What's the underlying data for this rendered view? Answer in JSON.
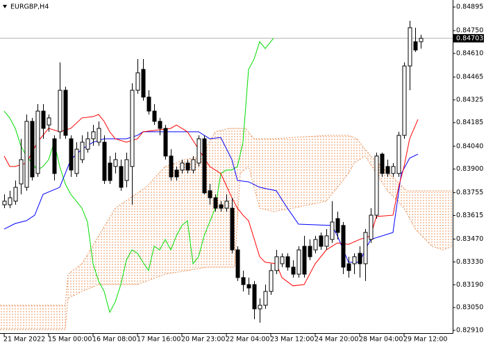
{
  "chart_data": {
    "type": "candlestick",
    "title": "EURGBP,H4",
    "xlim": [
      -0.75,
      80.75
    ],
    "ylim": [
      0.82893,
      0.84938
    ],
    "xticks": [
      {
        "value": 0,
        "label": "21 Mar 2022"
      },
      {
        "value": 8,
        "label": "15 Mar 00:00"
      },
      {
        "value": 16,
        "label": "16 Mar 08:00"
      },
      {
        "value": 24,
        "label": "17 Mar 16:00"
      },
      {
        "value": 32,
        "label": "20 Mar 23:00"
      },
      {
        "value": 40,
        "label": "22 Mar 04:00"
      },
      {
        "value": 48,
        "label": "23 Mar 12:00"
      },
      {
        "value": 56,
        "label": "24 Mar 20:00"
      },
      {
        "value": 64,
        "label": "28 Mar 04:00"
      },
      {
        "value": 72,
        "label": "29 Mar 12:00"
      }
    ],
    "yticks": [
      0.84895,
      {
        "value": 0.8475,
        "label": "0.84750"
      },
      {
        "value": 0.8461,
        "label": "0.84610"
      },
      0.84465,
      0.84325,
      0.84185,
      {
        "value": 0.8404,
        "label": "0.84040"
      },
      {
        "value": 0.839,
        "label": "0.83900"
      },
      0.83755,
      0.83615,
      {
        "value": 0.8347,
        "label": "0.83470"
      },
      {
        "value": 0.8333,
        "label": "0.83330"
      },
      {
        "value": 0.8319,
        "label": "0.83190"
      },
      {
        "value": 0.8305,
        "label": "0.83050"
      },
      {
        "value": 0.8291,
        "label": "0.82910"
      }
    ],
    "current_price": 0.84703,
    "up_color": "#ffffff",
    "down_color": "#000000",
    "x": [
      0,
      1,
      2,
      3,
      4,
      5,
      6,
      7,
      8,
      9,
      10,
      11,
      12,
      13,
      14,
      15,
      16,
      17,
      18,
      19,
      20,
      21,
      22,
      23,
      24,
      25,
      26,
      27,
      28,
      29,
      30,
      31,
      32,
      33,
      34,
      35,
      36,
      37,
      38,
      39,
      40,
      41,
      42,
      43,
      44,
      45,
      46,
      47,
      48,
      49,
      50,
      51,
      52,
      53,
      54,
      55,
      56,
      57,
      58,
      59,
      60,
      61,
      62,
      63,
      64,
      65,
      66,
      67,
      68,
      69,
      70,
      71,
      72,
      73,
      74,
      75
    ],
    "open": [
      0.83681,
      0.83681,
      0.83703,
      0.83809,
      0.83788,
      0.84193,
      0.83873,
      0.84256,
      0.84171,
      0.84086,
      0.84129,
      0.84384,
      0.84086,
      0.83873,
      0.83958,
      0.84022,
      0.84086,
      0.84065,
      0.84065,
      0.83937,
      0.83916,
      0.83916,
      0.8383,
      0.83916,
      0.84384,
      0.84512,
      0.84342,
      0.84256,
      0.84193,
      0.8415,
      0.8398,
      0.83894,
      0.83894,
      0.83937,
      0.83894,
      0.83937,
      0.84086,
      0.83767,
      0.83724,
      0.83681,
      0.8366,
      0.8366,
      0.83404,
      0.83234,
      0.83191,
      0.83191,
      0.83042,
      0.83064,
      0.83149,
      0.83277,
      0.83319,
      0.83362,
      0.83298,
      0.83255,
      0.83426,
      0.83426,
      0.83404,
      0.8349,
      0.83426,
      0.83468,
      0.83596,
      0.83554,
      0.83319,
      0.83319,
      0.83383,
      0.83319,
      0.83468,
      0.83617,
      0.83992,
      0.83916,
      0.83873,
      0.83873,
      0.84107,
      0.84533,
      0.84682,
      0.84682
    ],
    "high": [
      0.83745,
      0.83767,
      0.8383,
      0.84086,
      0.84235,
      0.84214,
      0.84299,
      0.84299,
      0.84235,
      0.84107,
      0.84555,
      0.84406,
      0.84107,
      0.84065,
      0.84107,
      0.84129,
      0.84171,
      0.84193,
      0.84107,
      0.8398,
      0.84001,
      0.83958,
      0.84001,
      0.84427,
      0.84576,
      0.84576,
      0.84384,
      0.84299,
      0.84214,
      0.84171,
      0.84022,
      0.83916,
      0.83958,
      0.83958,
      0.8398,
      0.84107,
      0.84107,
      0.83809,
      0.83745,
      0.83703,
      0.83745,
      0.83724,
      0.83426,
      0.83277,
      0.83234,
      0.83213,
      0.83106,
      0.83191,
      0.83319,
      0.83404,
      0.83383,
      0.83383,
      0.83341,
      0.83426,
      0.8349,
      0.83468,
      0.8349,
      0.83511,
      0.83532,
      0.83703,
      0.83639,
      0.83575,
      0.83362,
      0.83383,
      0.83426,
      0.83532,
      0.8366,
      0.84001,
      0.84001,
      0.83958,
      0.83937,
      0.84129,
      0.84555,
      0.8481,
      0.84768,
      0.84725
    ],
    "low": [
      0.8366,
      0.8366,
      0.83681,
      0.83745,
      0.83767,
      0.8383,
      0.83852,
      0.84086,
      0.84129,
      0.8383,
      0.84086,
      0.84086,
      0.83852,
      0.83852,
      0.83937,
      0.84001,
      0.84043,
      0.84043,
      0.83809,
      0.83809,
      0.83873,
      0.83767,
      0.83788,
      0.83681,
      0.84363,
      0.8432,
      0.84235,
      0.84171,
      0.84107,
      0.83958,
      0.8383,
      0.8383,
      0.83873,
      0.83873,
      0.83873,
      0.83916,
      0.83745,
      0.83681,
      0.83639,
      0.83639,
      0.83639,
      0.83383,
      0.83213,
      0.83149,
      0.83128,
      0.82978,
      0.82957,
      0.83042,
      0.83128,
      0.83255,
      0.83298,
      0.83277,
      0.83234,
      0.83234,
      0.83234,
      0.83341,
      0.83383,
      0.83404,
      0.83404,
      0.83447,
      0.83468,
      0.83255,
      0.83234,
      0.83255,
      0.83234,
      0.83213,
      0.83447,
      0.83596,
      0.83852,
      0.83852,
      0.83852,
      0.83852,
      0.84086,
      0.84384,
      0.84619,
      0.8464
    ],
    "close": [
      0.83703,
      0.83724,
      0.83788,
      0.83958,
      0.84193,
      0.83852,
      0.84256,
      0.8415,
      0.84214,
      0.83873,
      0.84384,
      0.84107,
      0.83894,
      0.84022,
      0.84065,
      0.84086,
      0.84129,
      0.8415,
      0.8383,
      0.8383,
      0.83958,
      0.83788,
      0.83958,
      0.84384,
      0.84491,
      0.84342,
      0.84256,
      0.84193,
      0.8415,
      0.8398,
      0.83852,
      0.83852,
      0.83937,
      0.83894,
      0.83958,
      0.84086,
      0.83754,
      0.83724,
      0.8366,
      0.8366,
      0.83703,
      0.83404,
      0.83234,
      0.83191,
      0.8317,
      0.83042,
      0.83064,
      0.83149,
      0.83277,
      0.83362,
      0.83362,
      0.83298,
      0.83255,
      0.83404,
      0.83255,
      0.83362,
      0.83468,
      0.83426,
      0.8349,
      0.83575,
      0.83511,
      0.83298,
      0.83277,
      0.83362,
      0.83319,
      0.83511,
      0.83617,
      0.8398,
      0.83873,
      0.83873,
      0.83916,
      0.84107,
      0.84533,
      0.84768,
      0.84631,
      0.84703
    ],
    "kijun": {
      "color": "#0000ff",
      "x": [
        0,
        2,
        4,
        5.5,
        7,
        10,
        12,
        14,
        16,
        18,
        22,
        24,
        25,
        35,
        37,
        39,
        41,
        42,
        44,
        46,
        49,
        51,
        53,
        59,
        60,
        62,
        64,
        65,
        66,
        70,
        71.5,
        73,
        74.5
      ],
      "values": [
        0.83532,
        0.83566,
        0.83583,
        0.83617,
        0.83745,
        0.83788,
        0.83958,
        0.84022,
        0.84065,
        0.84086,
        0.84086,
        0.84107,
        0.84129,
        0.84129,
        0.84086,
        0.84094,
        0.83958,
        0.8383,
        0.83822,
        0.83788,
        0.83767,
        0.8366,
        0.83562,
        0.83554,
        0.8349,
        0.83328,
        0.83328,
        0.83404,
        0.83468,
        0.83511,
        0.83873,
        0.83967,
        0.83992
      ]
    },
    "tenkan": {
      "color": "#ff0000",
      "x": [
        0,
        1,
        2,
        4,
        6,
        8,
        10,
        12,
        14,
        16,
        17,
        18,
        19,
        20,
        22,
        24,
        25,
        27,
        30,
        31,
        33,
        35,
        37,
        39,
        41,
        42,
        43,
        44,
        46,
        47,
        49,
        50,
        52,
        54,
        56,
        58,
        60,
        62,
        64,
        66,
        67,
        70,
        71,
        72,
        73,
        74.5
      ],
      "values": [
        0.8398,
        0.83916,
        0.83916,
        0.83937,
        0.84065,
        0.8415,
        0.84129,
        0.8415,
        0.84214,
        0.84222,
        0.84235,
        0.84193,
        0.84129,
        0.84086,
        0.84065,
        0.84086,
        0.84129,
        0.84137,
        0.8415,
        0.84171,
        0.84129,
        0.84022,
        0.83916,
        0.83873,
        0.83724,
        0.8366,
        0.83617,
        0.83583,
        0.83362,
        0.83328,
        0.83319,
        0.83234,
        0.83183,
        0.83191,
        0.83319,
        0.83404,
        0.83447,
        0.83438,
        0.83468,
        0.8349,
        0.83609,
        0.83617,
        0.83788,
        0.83916,
        0.84086,
        0.84205
      ]
    },
    "chikou": {
      "color": "#00dd00",
      "x": [
        0,
        1,
        2,
        3,
        4,
        6,
        7,
        8,
        9,
        10,
        11,
        12,
        13,
        14,
        15,
        16,
        17,
        18,
        19,
        20,
        21,
        22,
        23,
        24,
        25,
        26,
        27,
        28,
        29,
        30,
        31,
        32,
        33,
        34,
        35,
        36,
        37,
        38,
        39,
        40,
        41,
        42,
        43,
        44,
        45,
        46,
        47,
        48,
        48.5
      ],
      "values": [
        0.84256,
        0.84214,
        0.8415,
        0.84043,
        0.8398,
        0.83894,
        0.83916,
        0.83958,
        0.84065,
        0.83916,
        0.83809,
        0.83745,
        0.83703,
        0.8366,
        0.83575,
        0.83319,
        0.83213,
        0.83149,
        0.83021,
        0.83085,
        0.83191,
        0.83341,
        0.83404,
        0.83383,
        0.83328,
        0.83277,
        0.83426,
        0.83404,
        0.83468,
        0.83404,
        0.8349,
        0.83554,
        0.83583,
        0.83319,
        0.83362,
        0.8349,
        0.83575,
        0.8366,
        0.83873,
        0.83894,
        0.83894,
        0.83916,
        0.84065,
        0.84512,
        0.84576,
        0.84682,
        0.8464,
        0.84682,
        0.84704
      ]
    },
    "cloud_color": "#e8925a",
    "senkou_a": {
      "x": [
        -0.75,
        11,
        11.5,
        14,
        17,
        20,
        25.5,
        29,
        32.5,
        35.5,
        38,
        40.5,
        43.5,
        45,
        48.5,
        58,
        62,
        63.5,
        65,
        66,
        72.5,
        80.75
      ],
      "values": [
        0.83064,
        0.83064,
        0.83255,
        0.83319,
        0.8349,
        0.8366,
        0.83788,
        0.83916,
        0.83958,
        0.8398,
        0.84129,
        0.8415,
        0.8415,
        0.84086,
        0.84086,
        0.84107,
        0.84107,
        0.84086,
        0.84022,
        0.8398,
        0.83767,
        0.83767
      ]
    },
    "senkou_b": {
      "x": [
        -0.75,
        11,
        11.5,
        14,
        17,
        24,
        29,
        33,
        36.5,
        41.5,
        42.5,
        44,
        46,
        48.5,
        52,
        58,
        62,
        63,
        65,
        69,
        72,
        74,
        77,
        79,
        80.75
      ],
      "values": [
        0.82915,
        0.82915,
        0.83106,
        0.83149,
        0.83191,
        0.83191,
        0.83255,
        0.83277,
        0.83298,
        0.83298,
        0.83873,
        0.83916,
        0.8366,
        0.83639,
        0.8366,
        0.83703,
        0.83873,
        0.83937,
        0.8398,
        0.83767,
        0.8366,
        0.83532,
        0.83426,
        0.83404,
        0.83426
      ]
    }
  }
}
